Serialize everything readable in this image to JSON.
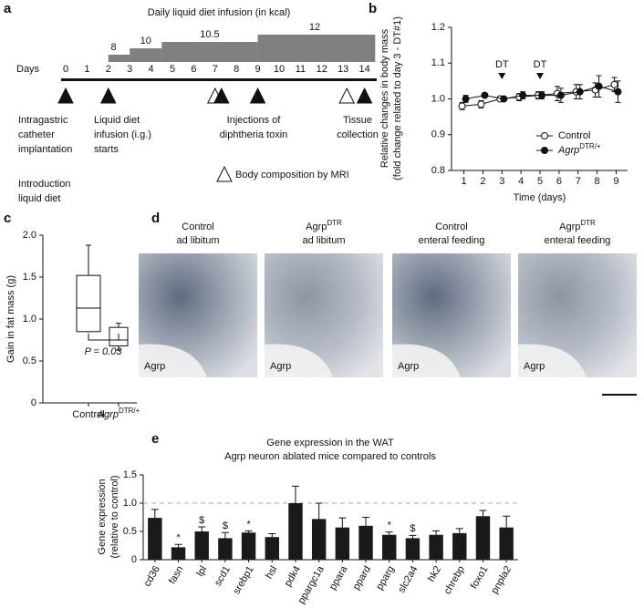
{
  "panel_labels": [
    "a",
    "b",
    "c",
    "d",
    "e"
  ],
  "timeline": {
    "title": "Daily liquid diet infusion (in kcal)",
    "steps": [
      8,
      10,
      10.5,
      12
    ],
    "axis_label": "Days",
    "days": [
      "0",
      "1",
      "2",
      "3",
      "4",
      "5",
      "6",
      "7",
      "8",
      "9",
      "10",
      "11",
      "12",
      "13",
      "14"
    ],
    "notes": [
      [
        "Intragastric",
        "catheter",
        "implantation"
      ],
      [
        "Liquid diet",
        "infusion (i.g.)",
        "starts"
      ],
      [
        "Injections of",
        "diphtheria toxin"
      ],
      [
        "Tissue",
        "collection"
      ],
      [
        "Introduction",
        "liquid diet"
      ]
    ],
    "legend": "Body composition by MRI"
  },
  "images": {
    "captions": [
      [
        "Control",
        "ad libitum"
      ],
      [
        "AgrpDTR",
        "ad libitum"
      ],
      [
        "Control",
        "enteral feeding"
      ],
      [
        "AgrpDTR",
        "enteral feeding"
      ]
    ],
    "label": "Agrp"
  },
  "chart_data": [
    {
      "type": "line",
      "ylabel": [
        "Relative changes in body mass",
        "(fold change related to day 3 - DT#1)"
      ],
      "xlabel": "Time (days)",
      "x": [
        1,
        2,
        3,
        4,
        5,
        6,
        7,
        8,
        9
      ],
      "xlim": [
        0.35,
        9.6
      ],
      "xticks": [
        1,
        2,
        3,
        4,
        5,
        6,
        7,
        8,
        9
      ],
      "ylim": [
        0.8,
        1.2
      ],
      "yticks": [
        0.8,
        0.9,
        {
          "value": 1,
          "label": "1.0"
        },
        1.1,
        1.2
      ],
      "legend": "lower right",
      "series": [
        {
          "name": "Control",
          "color": "#ffffff",
          "values": [
            0.98,
            0.985,
            1.0,
            1.005,
            1.01,
            1.015,
            1.02,
            1.025,
            1.04
          ],
          "errors": [
            0.01,
            0.01,
            0.005,
            0.01,
            0.01,
            0.02,
            0.02,
            0.02,
            0.02
          ]
        },
        {
          "name": "AgrpDTR/+",
          "color": "#111111",
          "values": [
            1.0,
            1.01,
            1.0,
            1.01,
            1.01,
            1.01,
            1.02,
            1.035,
            1.02
          ],
          "errors": [
            0.01,
            0.005,
            0.005,
            0.01,
            0.01,
            0.02,
            0.02,
            0.03,
            0.03
          ]
        }
      ],
      "annotations": [
        {
          "x": 3,
          "text": "DT"
        },
        {
          "x": 5,
          "text": "DT"
        }
      ]
    },
    {
      "type": "box",
      "ylabel": "Gain in fat mass (g)",
      "categories": [
        "Control",
        "AgrpDTR/+"
      ],
      "min": [
        0.85,
        0.63
      ],
      "q1": [
        0.85,
        0.68
      ],
      "median": [
        1.13,
        0.75
      ],
      "q3": [
        1.52,
        0.9
      ],
      "max": [
        1.88,
        0.95
      ],
      "ylim": [
        0,
        2
      ],
      "yticks": [
        0,
        0.5,
        {
          "value": 1,
          "label": "1.0"
        },
        1.5,
        {
          "value": 2,
          "label": "2.0"
        }
      ],
      "annotation": "P = 0.03"
    },
    {
      "type": "bar",
      "title": [
        "Gene expression in the WAT",
        "Agrp neuron ablated mice compared to controls"
      ],
      "ylabel": [
        "Gene expression",
        "(relative to control)"
      ],
      "categories": [
        "cd36",
        "fasn",
        "lpl",
        "scd1",
        "srebp1",
        "hsl",
        "pdk4",
        "ppargc1a",
        "ppara",
        "ppard",
        "pparg",
        "slc2a4",
        "hk2",
        "chrebp",
        "foxo1",
        "pnpla2"
      ],
      "values": [
        0.74,
        0.22,
        0.5,
        0.38,
        0.48,
        0.4,
        1.0,
        0.72,
        0.57,
        0.6,
        0.44,
        0.38,
        0.44,
        0.47,
        0.77,
        0.57
      ],
      "errors": [
        0.15,
        0.05,
        0.08,
        0.1,
        0.03,
        0.06,
        0.3,
        0.28,
        0.17,
        0.15,
        0.05,
        0.05,
        0.07,
        0.08,
        0.1,
        0.2
      ],
      "markers": [
        null,
        "*",
        "$",
        "$",
        "*",
        null,
        null,
        null,
        null,
        null,
        "*",
        "$",
        null,
        null,
        null,
        null
      ],
      "color": "#1a1a1a",
      "reference_line": 1,
      "ylim": [
        0,
        1.5
      ],
      "yticks": [
        0,
        0.5,
        {
          "value": 1,
          "label": "1.0"
        },
        1.5
      ]
    }
  ]
}
